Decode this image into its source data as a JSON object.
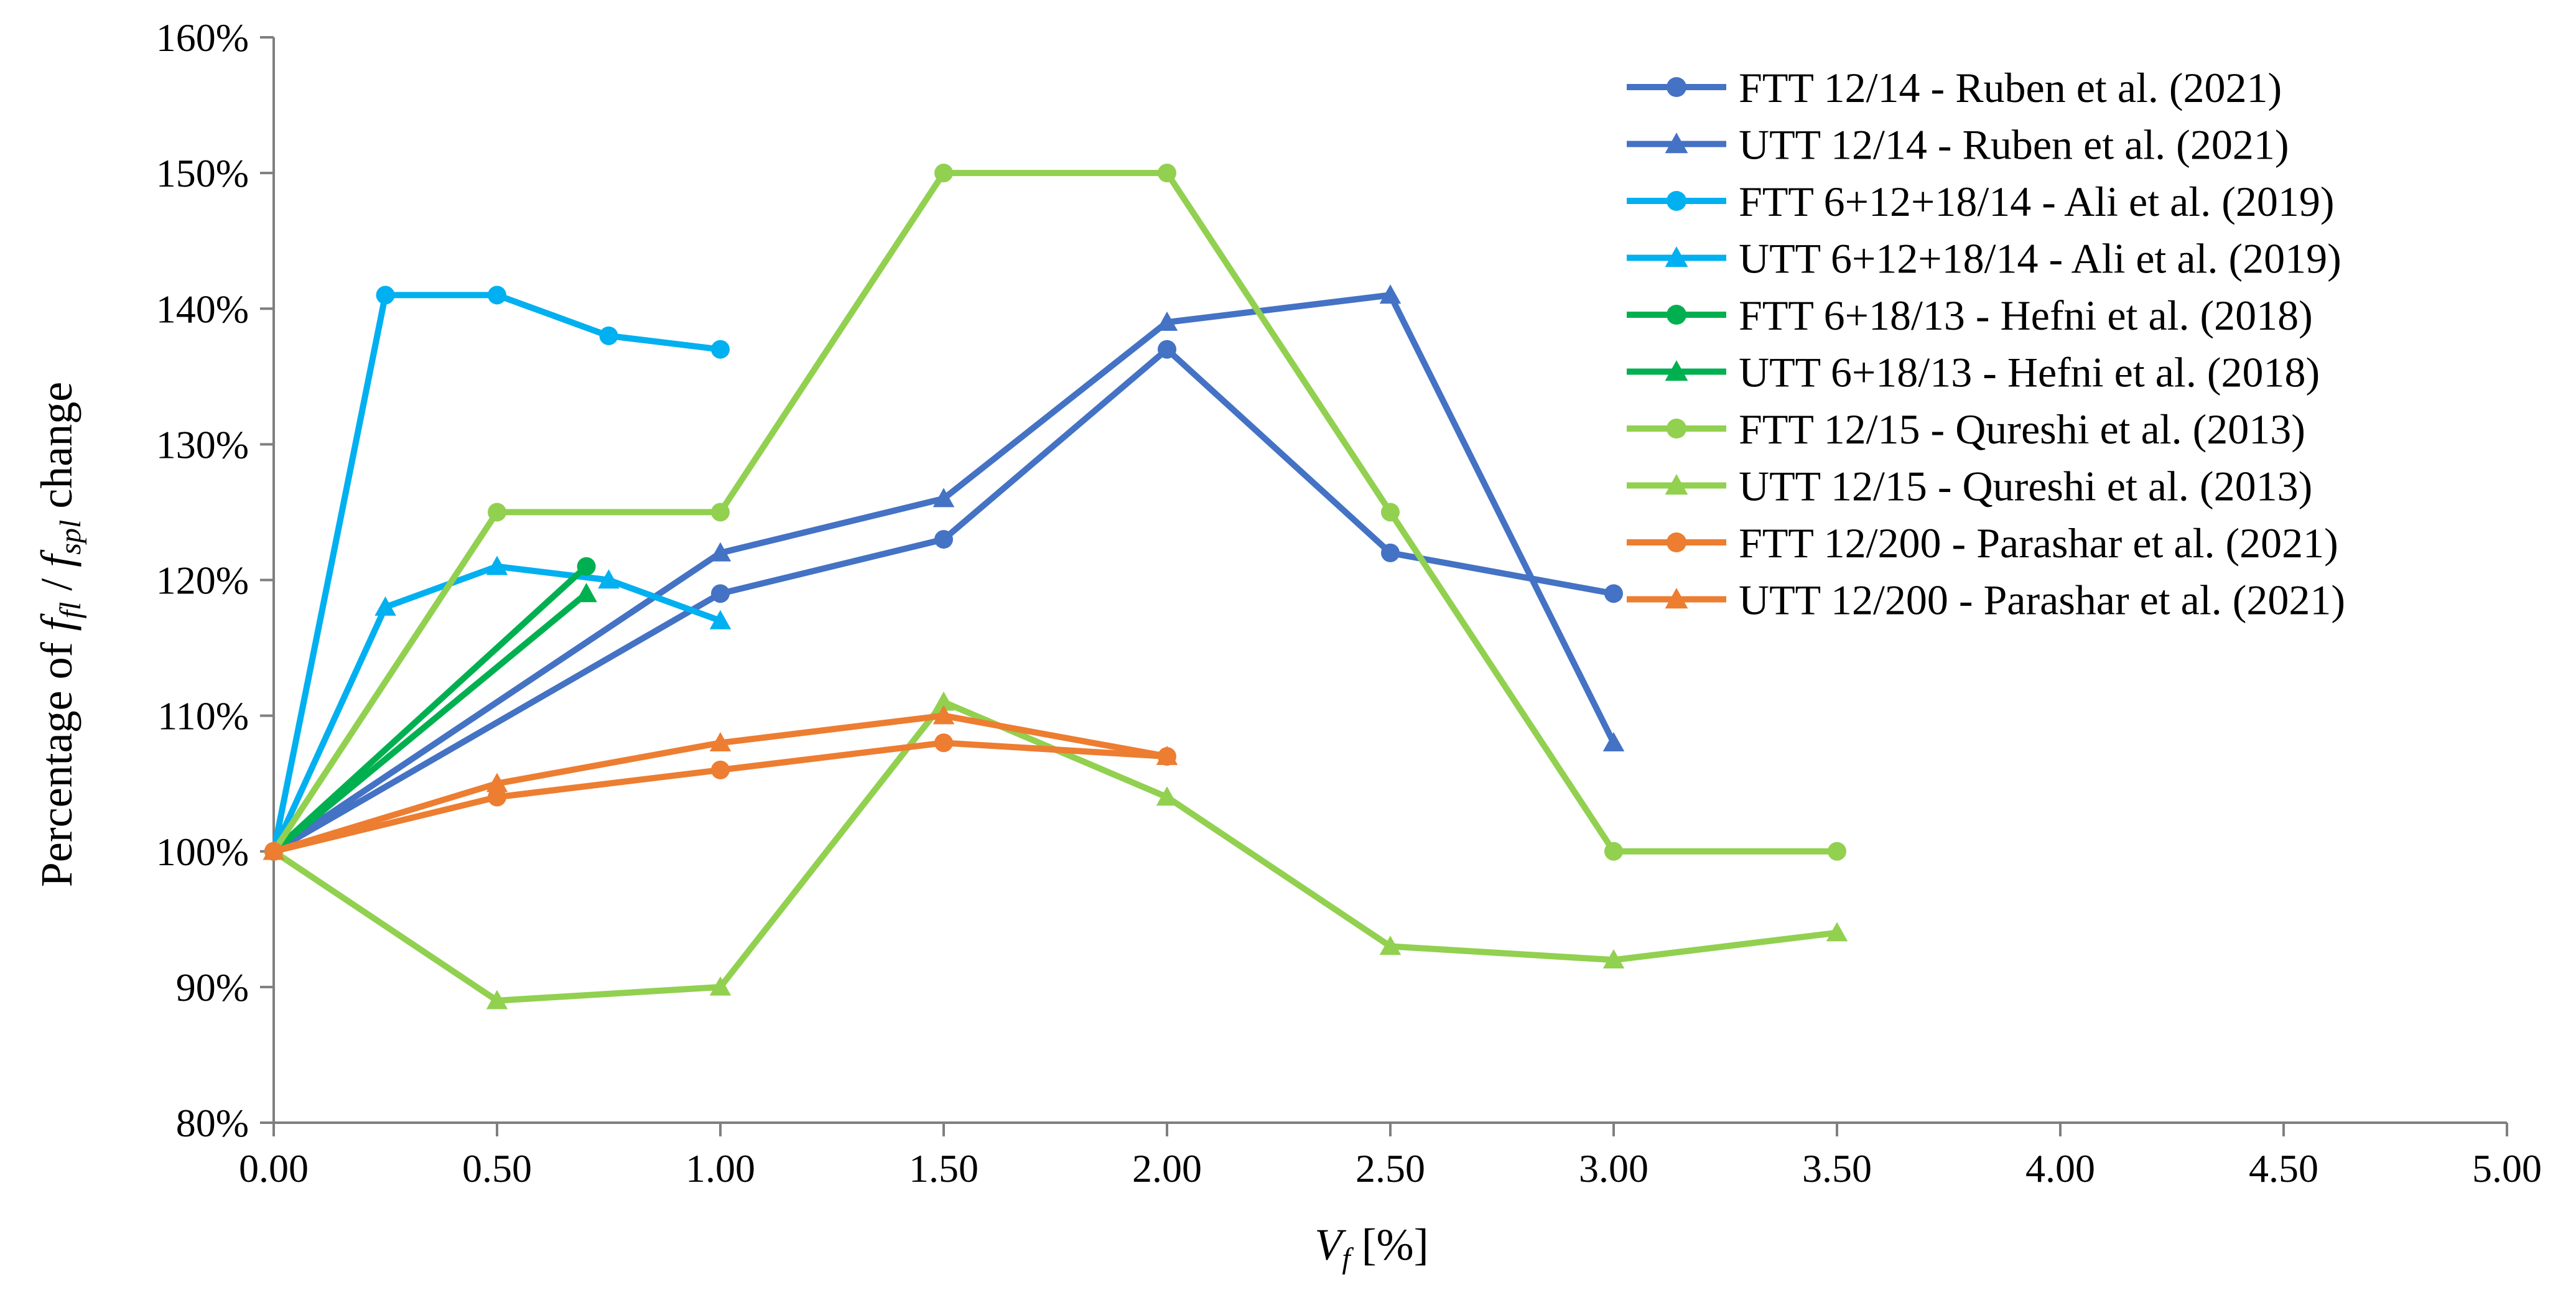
{
  "chart_data": {
    "type": "line",
    "title": "",
    "xlabel": {
      "main": "V",
      "sub": "f",
      "rest": " [%]"
    },
    "ylabel": {
      "prefix": "Percentage of ",
      "var1": "f",
      "sub1": "fl",
      "sep": " / ",
      "var2": "f",
      "sub2": "spl",
      "suffix": " change"
    },
    "xlim": [
      0,
      5
    ],
    "ylim": [
      80,
      160
    ],
    "x_ticks": [
      "0.00",
      "0.50",
      "1.00",
      "1.50",
      "2.00",
      "2.50",
      "3.00",
      "3.50",
      "4.00",
      "4.50",
      "5.00"
    ],
    "y_ticks": [
      "80%",
      "90%",
      "100%",
      "110%",
      "120%",
      "130%",
      "140%",
      "150%",
      "160%"
    ],
    "grid": false,
    "legend_position": "top-right",
    "series": [
      {
        "name": "FTT 12/14 - Ruben et al. (2021)",
        "color": "#4472C4",
        "marker": "circle",
        "points": [
          [
            0,
            100
          ],
          [
            1,
            119
          ],
          [
            1.5,
            123
          ],
          [
            2,
            137
          ],
          [
            2.5,
            122
          ],
          [
            3,
            119
          ]
        ]
      },
      {
        "name": "UTT 12/14 - Ruben et al. (2021)",
        "color": "#4472C4",
        "marker": "triangle",
        "points": [
          [
            0,
            100
          ],
          [
            1,
            122
          ],
          [
            1.5,
            126
          ],
          [
            2,
            139
          ],
          [
            2.5,
            141
          ],
          [
            3,
            108
          ]
        ]
      },
      {
        "name": "FTT 6+12+18/14 - Ali et al. (2019)",
        "color": "#00B0F0",
        "marker": "circle",
        "points": [
          [
            0,
            100
          ],
          [
            0.25,
            141
          ],
          [
            0.5,
            141
          ],
          [
            0.75,
            138
          ],
          [
            1,
            137
          ]
        ]
      },
      {
        "name": "UTT 6+12+18/14 - Ali et al. (2019)",
        "color": "#00B0F0",
        "marker": "triangle",
        "points": [
          [
            0,
            100
          ],
          [
            0.25,
            118
          ],
          [
            0.5,
            121
          ],
          [
            0.75,
            120
          ],
          [
            1,
            117
          ]
        ]
      },
      {
        "name": "FTT 6+18/13 - Hefni et al. (2018)",
        "color": "#00B050",
        "marker": "circle",
        "points": [
          [
            0,
            100
          ],
          [
            0.7,
            121
          ]
        ]
      },
      {
        "name": "UTT 6+18/13 - Hefni et al. (2018)",
        "color": "#00B050",
        "marker": "triangle",
        "points": [
          [
            0,
            100
          ],
          [
            0.7,
            119
          ]
        ]
      },
      {
        "name": "FTT 12/15 - Qureshi et al. (2013)",
        "color": "#92D050",
        "marker": "circle",
        "points": [
          [
            0,
            100
          ],
          [
            0.5,
            125
          ],
          [
            1,
            125
          ],
          [
            1.5,
            150
          ],
          [
            2,
            150
          ],
          [
            2.5,
            125
          ],
          [
            3,
            100
          ],
          [
            3.5,
            100
          ]
        ]
      },
      {
        "name": "UTT 12/15 - Qureshi et al. (2013)",
        "color": "#92D050",
        "marker": "triangle",
        "points": [
          [
            0,
            100
          ],
          [
            0.5,
            89
          ],
          [
            1,
            90
          ],
          [
            1.5,
            111
          ],
          [
            2,
            104
          ],
          [
            2.5,
            93
          ],
          [
            3,
            92
          ],
          [
            3.5,
            94
          ]
        ]
      },
      {
        "name": "FTT 12/200 - Parashar et al. (2021)",
        "color": "#ED7D31",
        "marker": "circle",
        "points": [
          [
            0,
            100
          ],
          [
            0.5,
            104
          ],
          [
            1,
            106
          ],
          [
            1.5,
            108
          ],
          [
            2,
            107
          ]
        ]
      },
      {
        "name": "UTT 12/200 - Parashar et al. (2021)",
        "color": "#ED7D31",
        "marker": "triangle",
        "points": [
          [
            0,
            100
          ],
          [
            0.5,
            105
          ],
          [
            1,
            108
          ],
          [
            1.5,
            110
          ],
          [
            2,
            107
          ]
        ]
      }
    ]
  }
}
